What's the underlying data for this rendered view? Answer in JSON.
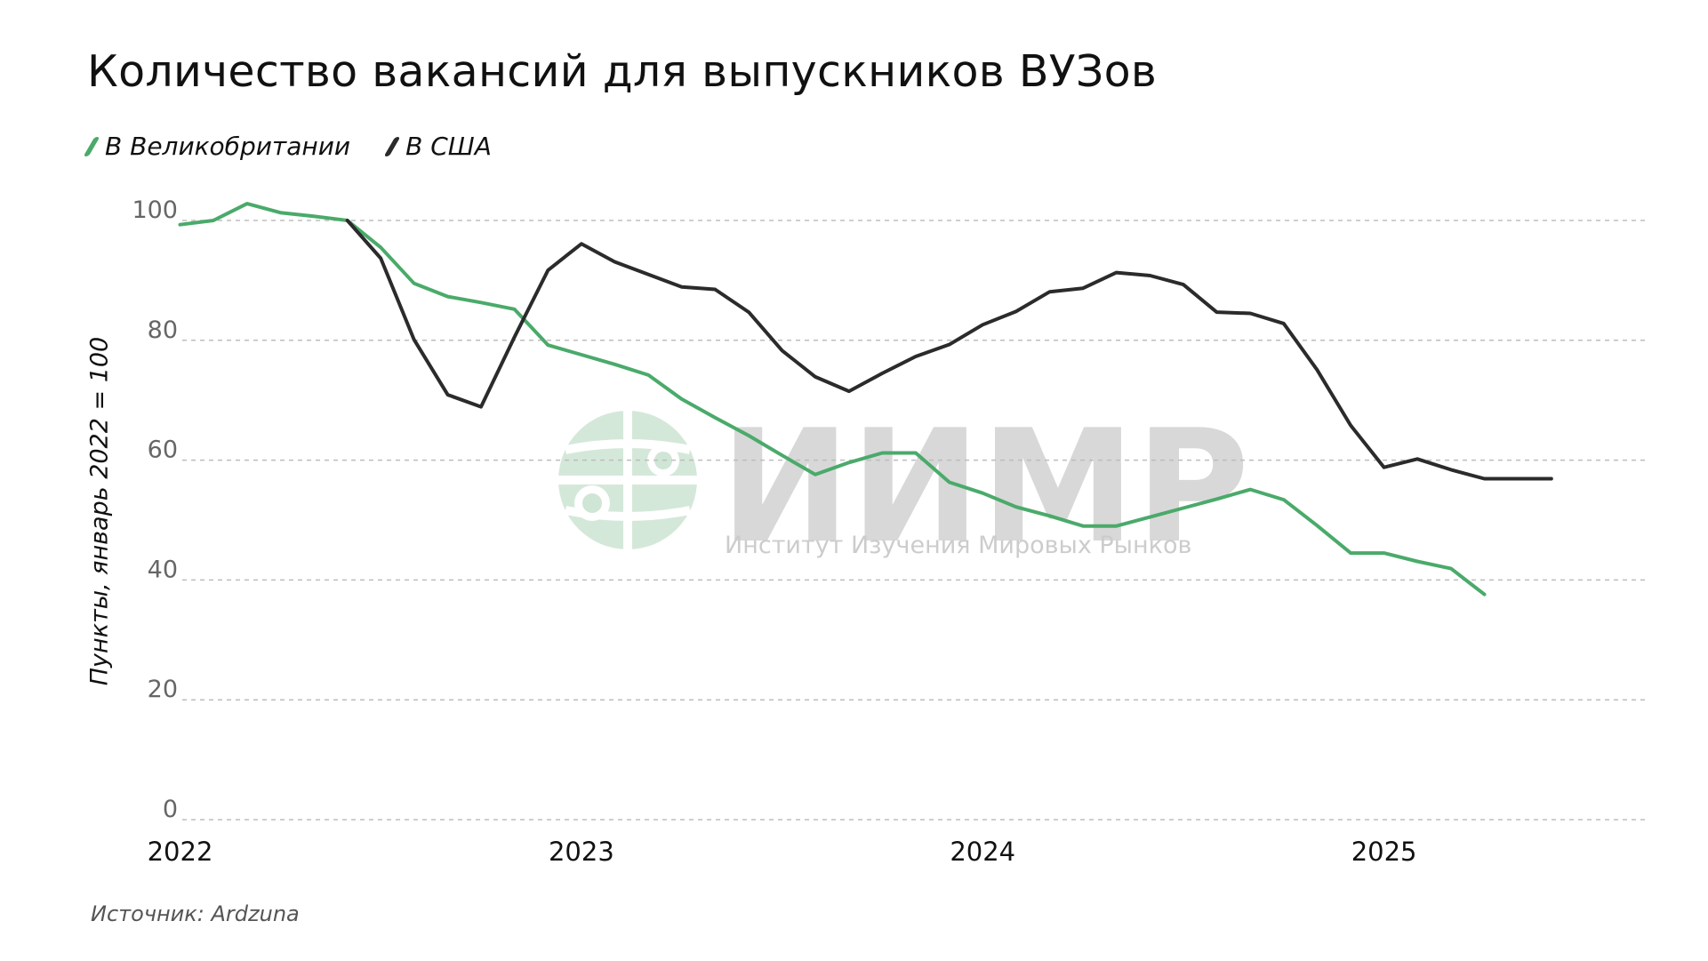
{
  "title": "Количество вакансий для выпускников ВУЗов",
  "source": "Источник: Ardzuna",
  "watermark": {
    "main": "ИИМР",
    "sub": "Институт Изучения Мировых Рынков",
    "icon": "globe-icon"
  },
  "colors": {
    "uk": "#4aaa6a",
    "us": "#2b2b2b",
    "grid": "#bdbdbd",
    "watermark": "#cfe5d5"
  },
  "chart_data": {
    "type": "line",
    "title": "Количество вакансий для выпускников ВУЗов",
    "ylabel": "Пункты, январь 2022 = 100",
    "xlabel": "",
    "ylim": [
      0,
      100
    ],
    "yticks": [
      0,
      20,
      40,
      60,
      80,
      100
    ],
    "xticks": [
      2022,
      2023,
      2024,
      2025
    ],
    "xlim": [
      2021.99,
      2025.65
    ],
    "grid": true,
    "legend": "top-left",
    "series": [
      {
        "name": "В Великобритании",
        "color": "#4aaa6a",
        "x": [
          2022.0,
          2022.083,
          2022.167,
          2022.25,
          2022.333,
          2022.417,
          2022.5,
          2022.583,
          2022.667,
          2022.75,
          2022.833,
          2022.917,
          2023.0,
          2023.083,
          2023.167,
          2023.25,
          2023.333,
          2023.417,
          2023.5,
          2023.583,
          2023.667,
          2023.75,
          2023.833,
          2023.917,
          2024.0,
          2024.083,
          2024.167,
          2024.25,
          2024.333,
          2024.417,
          2024.5,
          2024.583,
          2024.667,
          2024.75,
          2024.833,
          2024.917,
          2025.0,
          2025.083,
          2025.167,
          2025.25
        ],
        "y": [
          99.3,
          100,
          102.8,
          101.3,
          100.7,
          100,
          95.5,
          89.5,
          87.3,
          86.3,
          85.2,
          79.2,
          77.6,
          76,
          74.2,
          70.2,
          67.1,
          64.1,
          60.8,
          57.6,
          59.6,
          61.2,
          61.2,
          56.3,
          54.5,
          52.2,
          50.7,
          49,
          49,
          50.5,
          52,
          53.5,
          55.1,
          53.4,
          49.1,
          44.5,
          44.5,
          43.1,
          41.9,
          37.6
        ]
      },
      {
        "name": "В США",
        "color": "#2b2b2b",
        "x": [
          2022.417,
          2022.5,
          2022.583,
          2022.667,
          2022.75,
          2022.833,
          2022.917,
          2023.0,
          2023.083,
          2023.167,
          2023.25,
          2023.333,
          2023.417,
          2023.5,
          2023.583,
          2023.667,
          2023.75,
          2023.833,
          2023.917,
          2024.0,
          2024.083,
          2024.167,
          2024.25,
          2024.333,
          2024.417,
          2024.5,
          2024.583,
          2024.667,
          2024.75,
          2024.833,
          2024.917,
          2025.0,
          2025.083,
          2025.167,
          2025.25,
          2025.333,
          2025.417
        ],
        "y": [
          100,
          93.7,
          80.1,
          70.9,
          68.9,
          80.5,
          91.7,
          96.1,
          93.1,
          91,
          88.9,
          88.5,
          84.7,
          78.3,
          73.9,
          71.5,
          74.5,
          77.3,
          79.3,
          82.6,
          84.8,
          88.1,
          88.7,
          91.3,
          90.8,
          89.3,
          84.7,
          84.5,
          82.8,
          75.1,
          65.8,
          58.8,
          60.2,
          58.4,
          56.9,
          56.9,
          56.9
        ]
      }
    ]
  }
}
